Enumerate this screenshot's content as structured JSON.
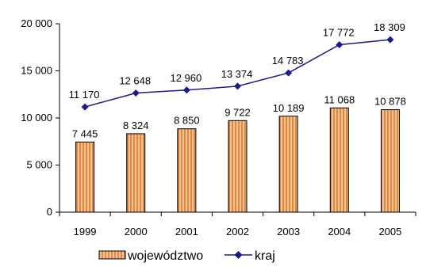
{
  "chart_data": {
    "type": "bar",
    "categories": [
      "1999",
      "2000",
      "2001",
      "2002",
      "2003",
      "2004",
      "2005"
    ],
    "ylim": [
      0,
      20000
    ],
    "yticks": [
      0,
      5000,
      10000,
      15000,
      20000
    ],
    "ytick_labels": [
      "0",
      "5 000",
      "10 000",
      "15 000",
      "20 000"
    ],
    "grid": false,
    "legend_position": "bottom",
    "series": [
      {
        "name": "województwo",
        "kind": "bar",
        "values": [
          7445,
          8324,
          8850,
          9722,
          10189,
          11068,
          10878
        ],
        "labels": [
          "7 445",
          "8 324",
          "8 850",
          "9 722",
          "10 189",
          "11 068",
          "10 878"
        ],
        "color": "#f5c28c",
        "pattern": "vertical-hatch"
      },
      {
        "name": "kraj",
        "kind": "line",
        "values": [
          11170,
          12648,
          12960,
          13374,
          14783,
          17772,
          18309
        ],
        "labels": [
          "11 170",
          "12 648",
          "12 960",
          "13 374",
          "14 783",
          "17 772",
          "18 309"
        ],
        "color": "#1a1a8c",
        "marker": "diamond"
      }
    ]
  }
}
